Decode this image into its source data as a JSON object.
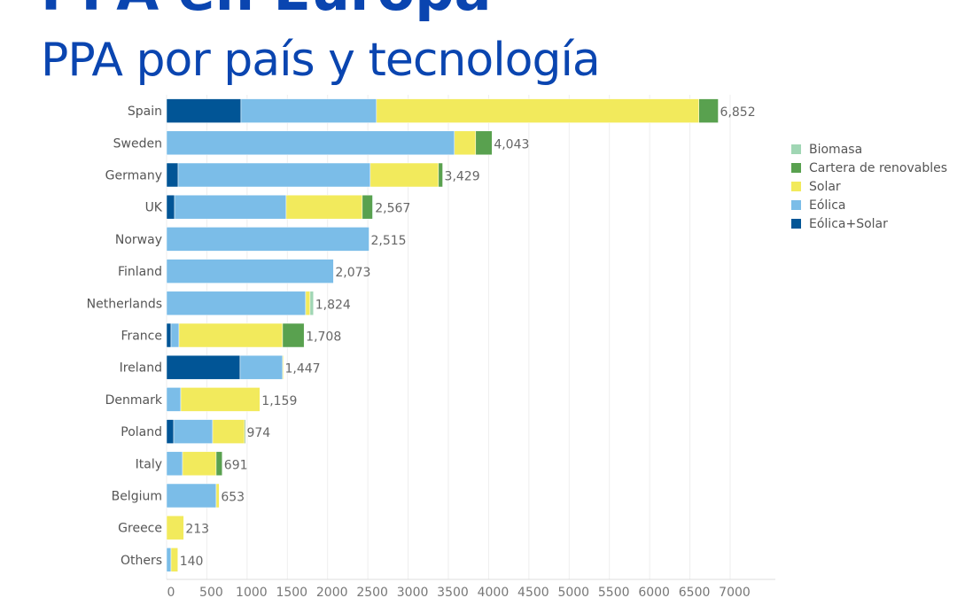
{
  "header": {
    "title": "PPA en Europa",
    "subtitle": "PPA por país y tecnología"
  },
  "chart_data": {
    "type": "bar",
    "orientation": "horizontal",
    "stacked": true,
    "title": "PPA por país y tecnología",
    "xlim": [
      0,
      7000
    ],
    "xticks": [
      0,
      500,
      1000,
      1500,
      2000,
      2500,
      3000,
      3500,
      4000,
      4500,
      5000,
      5500,
      6000,
      6500,
      7000
    ],
    "grid": true,
    "legend_position": "right",
    "categories": [
      "Spain",
      "Sweden",
      "Germany",
      "UK",
      "Norway",
      "Finland",
      "Netherlands",
      "France",
      "Ireland",
      "Denmark",
      "Poland",
      "Italy",
      "Belgium",
      "Greece",
      "Others"
    ],
    "totals": [
      "6,852",
      "4,043",
      "3,429",
      "2,567",
      "2,515",
      "2,073",
      "1,824",
      "1,708",
      "1,447",
      "1,159",
      "974",
      "691",
      "653",
      "213",
      "140"
    ],
    "series": [
      {
        "name": "Eólica+Solar",
        "color": "#015596",
        "values": [
          924,
          0,
          143,
          99,
          0,
          0,
          0,
          55,
          913,
          0,
          88,
          0,
          0,
          0,
          0
        ]
      },
      {
        "name": "Eólica",
        "color": "#7bbde8",
        "values": [
          1683,
          3575,
          2387,
          1386,
          2515,
          2073,
          1727,
          99,
          528,
          176,
          484,
          198,
          616,
          0,
          55
        ]
      },
      {
        "name": "Solar",
        "color": "#f2ea5c",
        "values": [
          4005,
          264,
          847,
          946,
          0,
          0,
          55,
          1287,
          6,
          983,
          396,
          418,
          37,
          213,
          85
        ]
      },
      {
        "name": "Cartera de renovables",
        "color": "#59a14f",
        "values": [
          240,
          204,
          52,
          126,
          0,
          0,
          0,
          267,
          0,
          0,
          6,
          75,
          0,
          0,
          0
        ]
      },
      {
        "name": "Biomasa",
        "color": "#a0d6b4",
        "values": [
          0,
          0,
          0,
          10,
          0,
          0,
          42,
          0,
          0,
          0,
          0,
          0,
          0,
          0,
          0
        ]
      }
    ],
    "legend_order": [
      "Biomasa",
      "Cartera de renovables",
      "Solar",
      "Eólica",
      "Eólica+Solar"
    ]
  }
}
